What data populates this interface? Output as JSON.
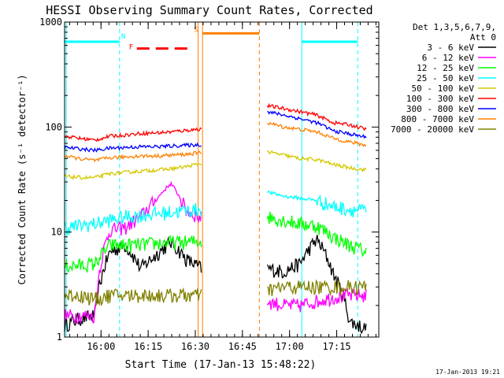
{
  "chart_data": {
    "type": "line",
    "title": "HESSI Observing Summary Count Rates, Corrected",
    "xlabel": "Start Time (17-Jan-13 15:48:22)",
    "ylabel": "Corrected Count Rate (s⁻¹ detector⁻¹)",
    "yscale": "log",
    "ylim": [
      1,
      1000
    ],
    "xlim_minutes": [
      0,
      100
    ],
    "x_ticks": [
      {
        "label": "16:00",
        "t": 11.6
      },
      {
        "label": "16:15",
        "t": 26.6
      },
      {
        "label": "16:30",
        "t": 41.6
      },
      {
        "label": "16:45",
        "t": 56.6
      },
      {
        "label": "17:00",
        "t": 71.6
      },
      {
        "label": "17:15",
        "t": 86.6
      }
    ],
    "y_ticks": [
      {
        "label": "1",
        "v": 1
      },
      {
        "label": "10",
        "v": 10
      },
      {
        "label": "100",
        "v": 100
      },
      {
        "label": "1000",
        "v": 1000
      }
    ],
    "legend_header": [
      "Det 1,3,5,6,7,9,",
      "Att 0"
    ],
    "legend_position": "right",
    "series": [
      {
        "name": "3 - 6 keV",
        "color": "#000000",
        "seg1": [
          1.3,
          1.5,
          1.6,
          6.5,
          7.5,
          4.5,
          6.0,
          8.0,
          5.5,
          4.5
        ],
        "seg2": [
          4.5,
          4.2,
          5.0,
          8.5,
          4.0,
          1.4,
          1.2
        ]
      },
      {
        "name": "6 - 12 keV",
        "color": "#ff00ff",
        "seg1": [
          1.6,
          1.6,
          1.6,
          10.5,
          11.0,
          14.0,
          20.0,
          29.0,
          16.0,
          13.5
        ],
        "seg2": [
          2.2,
          2.0,
          2.0,
          2.2,
          2.4,
          2.5,
          2.5
        ]
      },
      {
        "name": "12 - 25 keV",
        "color": "#00ff00",
        "seg1": [
          4.8,
          4.8,
          5.0,
          7.5,
          7.5,
          7.6,
          7.8,
          8.0,
          8.0,
          8.2
        ],
        "seg2": [
          14.0,
          13.0,
          12.0,
          11.5,
          9.0,
          7.5,
          6.5
        ]
      },
      {
        "name": "25 - 50 keV",
        "color": "#00ffff",
        "seg1": [
          11.0,
          11.5,
          12.0,
          13.0,
          14.0,
          14.5,
          15.0,
          15.5,
          16.0,
          16.5
        ],
        "seg2": [
          24.0,
          22.0,
          21.0,
          20.0,
          17.5,
          16.5,
          16.0
        ]
      },
      {
        "name": "50 - 100 keV",
        "color": "#d4c800",
        "seg1": [
          34.0,
          33.0,
          33.0,
          36.0,
          37.0,
          38.0,
          39.0,
          40.0,
          42.0,
          45.0
        ],
        "seg2": [
          58.0,
          54.0,
          50.0,
          49.0,
          44.0,
          41.0,
          39.0
        ]
      },
      {
        "name": "100 - 300 keV",
        "color": "#ff0000",
        "seg1": [
          82.0,
          78.0,
          75.0,
          82.0,
          84.0,
          87.0,
          88.0,
          90.0,
          93.0,
          96.0
        ],
        "seg2": [
          160.0,
          150.0,
          140.0,
          130.0,
          110.0,
          105.0,
          95.0
        ]
      },
      {
        "name": "300 - 800 keV",
        "color": "#0000ff",
        "seg1": [
          64.0,
          62.0,
          60.0,
          63.0,
          64.0,
          65.0,
          65.0,
          66.0,
          67.0,
          68.0
        ],
        "seg2": [
          140.0,
          130.0,
          120.0,
          110.0,
          92.0,
          86.0,
          80.0
        ]
      },
      {
        "name": "800 - 7000 keV",
        "color": "#ff7f00",
        "seg1": [
          53.0,
          50.0,
          48.0,
          51.0,
          52.0,
          53.0,
          53.0,
          54.0,
          55.0,
          57.0
        ],
        "seg2": [
          110.0,
          100.0,
          95.0,
          90.0,
          78.0,
          72.0,
          67.0
        ]
      },
      {
        "name": "7000 - 20000 keV",
        "color": "#808000",
        "seg1": [
          2.5,
          2.5,
          2.3,
          2.5,
          2.5,
          2.5,
          2.5,
          2.5,
          2.5,
          2.5
        ],
        "seg2": [
          2.8,
          3.0,
          3.0,
          3.0,
          3.0,
          3.0,
          3.0
        ]
      }
    ],
    "seg1_range_minutes": [
      0,
      43.5
    ],
    "seg2_range_minutes": [
      64.5,
      96
    ],
    "night_periods": [
      {
        "start": 0,
        "end": 17.5,
        "label": "N",
        "level": 650
      },
      {
        "start": 75.5,
        "end": 93.3,
        "label": "",
        "level": 650
      }
    ],
    "flare_markers": [
      {
        "start": 23,
        "end": 40,
        "label": "F",
        "level": 560
      }
    ],
    "saa_periods": [
      {
        "start": 43.9,
        "end": 62.0,
        "label": "S",
        "level": 780
      }
    ],
    "vertical_lines_solid": [
      {
        "t": 0.5,
        "color": "#00ffff"
      },
      {
        "t": 75.5,
        "color": "#00ffff"
      },
      {
        "t": 42.5,
        "color": "#ff7f00"
      },
      {
        "t": 43.9,
        "color": "#ff7f00"
      }
    ],
    "vertical_lines_dashed": [
      {
        "t": 17.5,
        "color": "#00ffff"
      },
      {
        "t": 93.3,
        "color": "#00ffff"
      },
      {
        "t": 62.0,
        "color": "#ff7f00"
      }
    ],
    "footer_date": "17-Jan-2013 19:21"
  }
}
